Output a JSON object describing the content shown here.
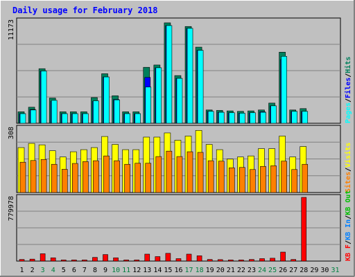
{
  "colors": {
    "frame_bg": "#c0c0c0",
    "plot_bg": "#c0c0c0",
    "title": "#0000ff",
    "hits": "#00805c",
    "files": "#0000ff",
    "pages": "#00ffff",
    "visits": "#ffff00",
    "sites": "#ff8000",
    "kb_in": "#0080ff",
    "kb_out": "#00c000",
    "kb_f": "#ff0000",
    "weekend_day": "#008040",
    "weekday_day": "#000000"
  },
  "chart_data": {
    "type": "bar",
    "title": "Daily usage for February 2018",
    "x_labels": [
      "1",
      "2",
      "3",
      "4",
      "5",
      "6",
      "7",
      "8",
      "9",
      "10",
      "11",
      "12",
      "13",
      "14",
      "15",
      "16",
      "17",
      "18",
      "19",
      "20",
      "21",
      "22",
      "23",
      "24",
      "25",
      "26",
      "27",
      "28",
      "29",
      "30",
      "31"
    ],
    "weekend_days": [
      3,
      4,
      10,
      11,
      17,
      18,
      24,
      25,
      31
    ],
    "panels": [
      {
        "name": "hits-files-pages",
        "ymax_label": "11173",
        "ylim": [
          0,
          11173
        ],
        "legend": [
          {
            "label": "Pages",
            "color": "#00ffff"
          },
          {
            "sep": "/",
            "color": "#000000"
          },
          {
            "label": "Files",
            "color": "#0000ff"
          },
          {
            "sep": "/",
            "color": "#000000"
          },
          {
            "label": "Hits",
            "color": "#00805c"
          }
        ],
        "series": [
          {
            "name": "Hits",
            "values": [
              1250,
              1750,
              5950,
              2750,
              1250,
              1250,
              1250,
              2800,
              5400,
              3000,
              1250,
              1250,
              6100,
              6350,
              10950,
              5200,
              10550,
              8300,
              1450,
              1400,
              1350,
              1300,
              1350,
              1450,
              2200,
              7750,
              1450,
              1600
            ]
          },
          {
            "name": "Files",
            "values": [
              1050,
              1500,
              5700,
              2400,
              1050,
              1050,
              1050,
              2400,
              5050,
              2600,
              1050,
              1050,
              5000,
              6050,
              10650,
              4900,
              10350,
              7950,
              1300,
              1200,
              1150,
              1100,
              1150,
              1250,
              1900,
              6950,
              1300,
              1300
            ]
          },
          {
            "name": "Pages",
            "values": [
              1050,
              1450,
              5700,
              2500,
              1050,
              1050,
              1050,
              2450,
              5050,
              2550,
              1050,
              1050,
              3950,
              6050,
              10650,
              4900,
              10350,
              7950,
              1300,
              1200,
              1150,
              1100,
              1150,
              1200,
              1900,
              7300,
              1300,
              1300
            ]
          }
        ]
      },
      {
        "name": "visits-sites",
        "ymax_label": "308",
        "ylim": [
          0,
          308
        ],
        "legend": [
          {
            "label": "Sites",
            "color": "#ff8000"
          },
          {
            "sep": "/",
            "color": "#000000"
          },
          {
            "label": "Visits",
            "color": "#ffff00"
          }
        ],
        "series": [
          {
            "name": "Visits",
            "values": [
              215,
              235,
              228,
              200,
              170,
              195,
              205,
              215,
              268,
              230,
              205,
              205,
              265,
              265,
              285,
              250,
              270,
              297,
              230,
              205,
              160,
              170,
              175,
              210,
              210,
              270,
              170,
              220
            ]
          },
          {
            "name": "Sites",
            "values": [
              145,
              153,
              158,
              135,
              111,
              139,
              148,
              152,
              175,
              152,
              135,
              140,
              140,
              172,
              198,
              172,
              195,
              192,
              152,
              150,
              118,
              120,
              110,
              125,
              128,
              150,
              110,
              135
            ]
          }
        ]
      },
      {
        "name": "kbytes",
        "ymax_label": "779978",
        "ylim": [
          0,
          779978
        ],
        "legend": [
          {
            "label": "KB F",
            "color": "#ff0000"
          },
          {
            "sep": "/",
            "color": "#000000"
          },
          {
            "label": "KB In",
            "color": "#0080ff"
          },
          {
            "sep": "/",
            "color": "#000000"
          },
          {
            "label": "KB Out",
            "color": "#00c000"
          }
        ],
        "series": [
          {
            "name": "KB F",
            "values": [
              20000,
              24000,
              90000,
              40000,
              14000,
              14000,
              14000,
              45000,
              80000,
              40000,
              14000,
              14000,
              85000,
              55000,
              95000,
              30000,
              85000,
              65000,
              20000,
              18000,
              14000,
              14000,
              20000,
              30000,
              35000,
              110000,
              20000,
              779978
            ]
          }
        ]
      }
    ]
  }
}
